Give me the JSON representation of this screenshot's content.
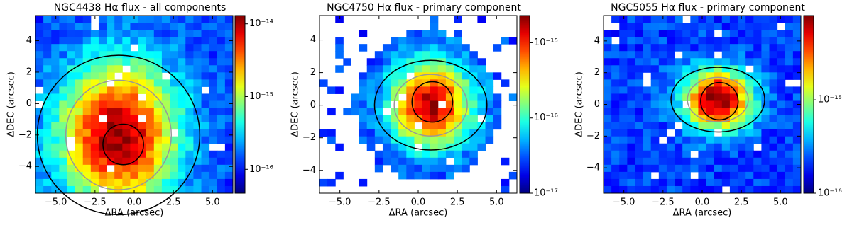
{
  "chart_data": [
    {
      "type": "heatmap",
      "title": "NGC4438 Hα flux - all components",
      "x_label": "ΔRA (arcsec)",
      "y_label": "ΔDEC (arcsec)",
      "xlim": [
        -6.3,
        6.3
      ],
      "ylim": [
        -5.7,
        5.6
      ],
      "xticks": [
        {
          "value": -5,
          "label": "−5.0"
        },
        {
          "value": -2.5,
          "label": "−2.5"
        },
        {
          "value": 0,
          "label": "0.0"
        },
        {
          "value": 2.5,
          "label": "2.5"
        },
        {
          "value": 5,
          "label": "5.0"
        }
      ],
      "yticks": [
        {
          "value": -4,
          "label": "−4"
        },
        {
          "value": -2,
          "label": "−2"
        },
        0,
        2,
        4
      ],
      "colorbar": {
        "scale": "log",
        "clim": [
          4.7e-17,
          1.3e-14
        ],
        "ticks": [
          {
            "value": 1e-16,
            "label": "10⁻¹⁶"
          },
          {
            "value": 1e-15,
            "label": "10⁻¹⁵"
          },
          {
            "value": 1e-14,
            "label": "10⁻¹⁴"
          }
        ]
      }
    },
    {
      "type": "heatmap",
      "title": "NGC4750 Hα flux - primary component",
      "x_label": "ΔRA (arcsec)",
      "y_label": "ΔDEC (arcsec)",
      "xlim": [
        -6.3,
        6.3
      ],
      "ylim": [
        -5.4,
        5.5
      ],
      "xticks": [
        {
          "value": -5,
          "label": "−5.0"
        },
        {
          "value": -2.5,
          "label": "−2.5"
        },
        {
          "value": 0,
          "label": "0.0"
        },
        {
          "value": 2.5,
          "label": "2.5"
        },
        {
          "value": 5,
          "label": "5.0"
        }
      ],
      "yticks": [
        {
          "value": -4,
          "label": "−4"
        },
        {
          "value": -2,
          "label": "−2"
        },
        0,
        2,
        4
      ],
      "colorbar": {
        "scale": "log",
        "clim": [
          1e-17,
          2.3e-15
        ],
        "ticks": [
          {
            "value": 1e-17,
            "label": "10⁻¹⁷"
          },
          {
            "value": 1e-16,
            "label": "10⁻¹⁶"
          },
          {
            "value": 1e-15,
            "label": "10⁻¹⁵"
          }
        ]
      }
    },
    {
      "type": "heatmap",
      "title": "NGC5055 Hα flux - primary component",
      "x_label": "ΔRA (arcsec)",
      "y_label": "ΔDEC (arcsec)",
      "xlim": [
        -6.3,
        6.3
      ],
      "ylim": [
        -5.6,
        5.6
      ],
      "xticks": [
        {
          "value": -5,
          "label": "−5.0"
        },
        {
          "value": -2.5,
          "label": "−2.5"
        },
        {
          "value": 0,
          "label": "0.0"
        },
        {
          "value": 2.5,
          "label": "2.5"
        },
        {
          "value": 5,
          "label": "5.0"
        }
      ],
      "yticks": [
        {
          "value": -4,
          "label": "−4"
        },
        {
          "value": -2,
          "label": "−2"
        },
        0,
        2,
        4
      ],
      "colorbar": {
        "scale": "log",
        "clim": [
          1e-16,
          8e-15
        ],
        "ticks": [
          {
            "value": 1e-16,
            "label": "10⁻¹⁶"
          },
          {
            "value": 1e-15,
            "label": "10⁻¹⁵"
          }
        ]
      }
    }
  ]
}
